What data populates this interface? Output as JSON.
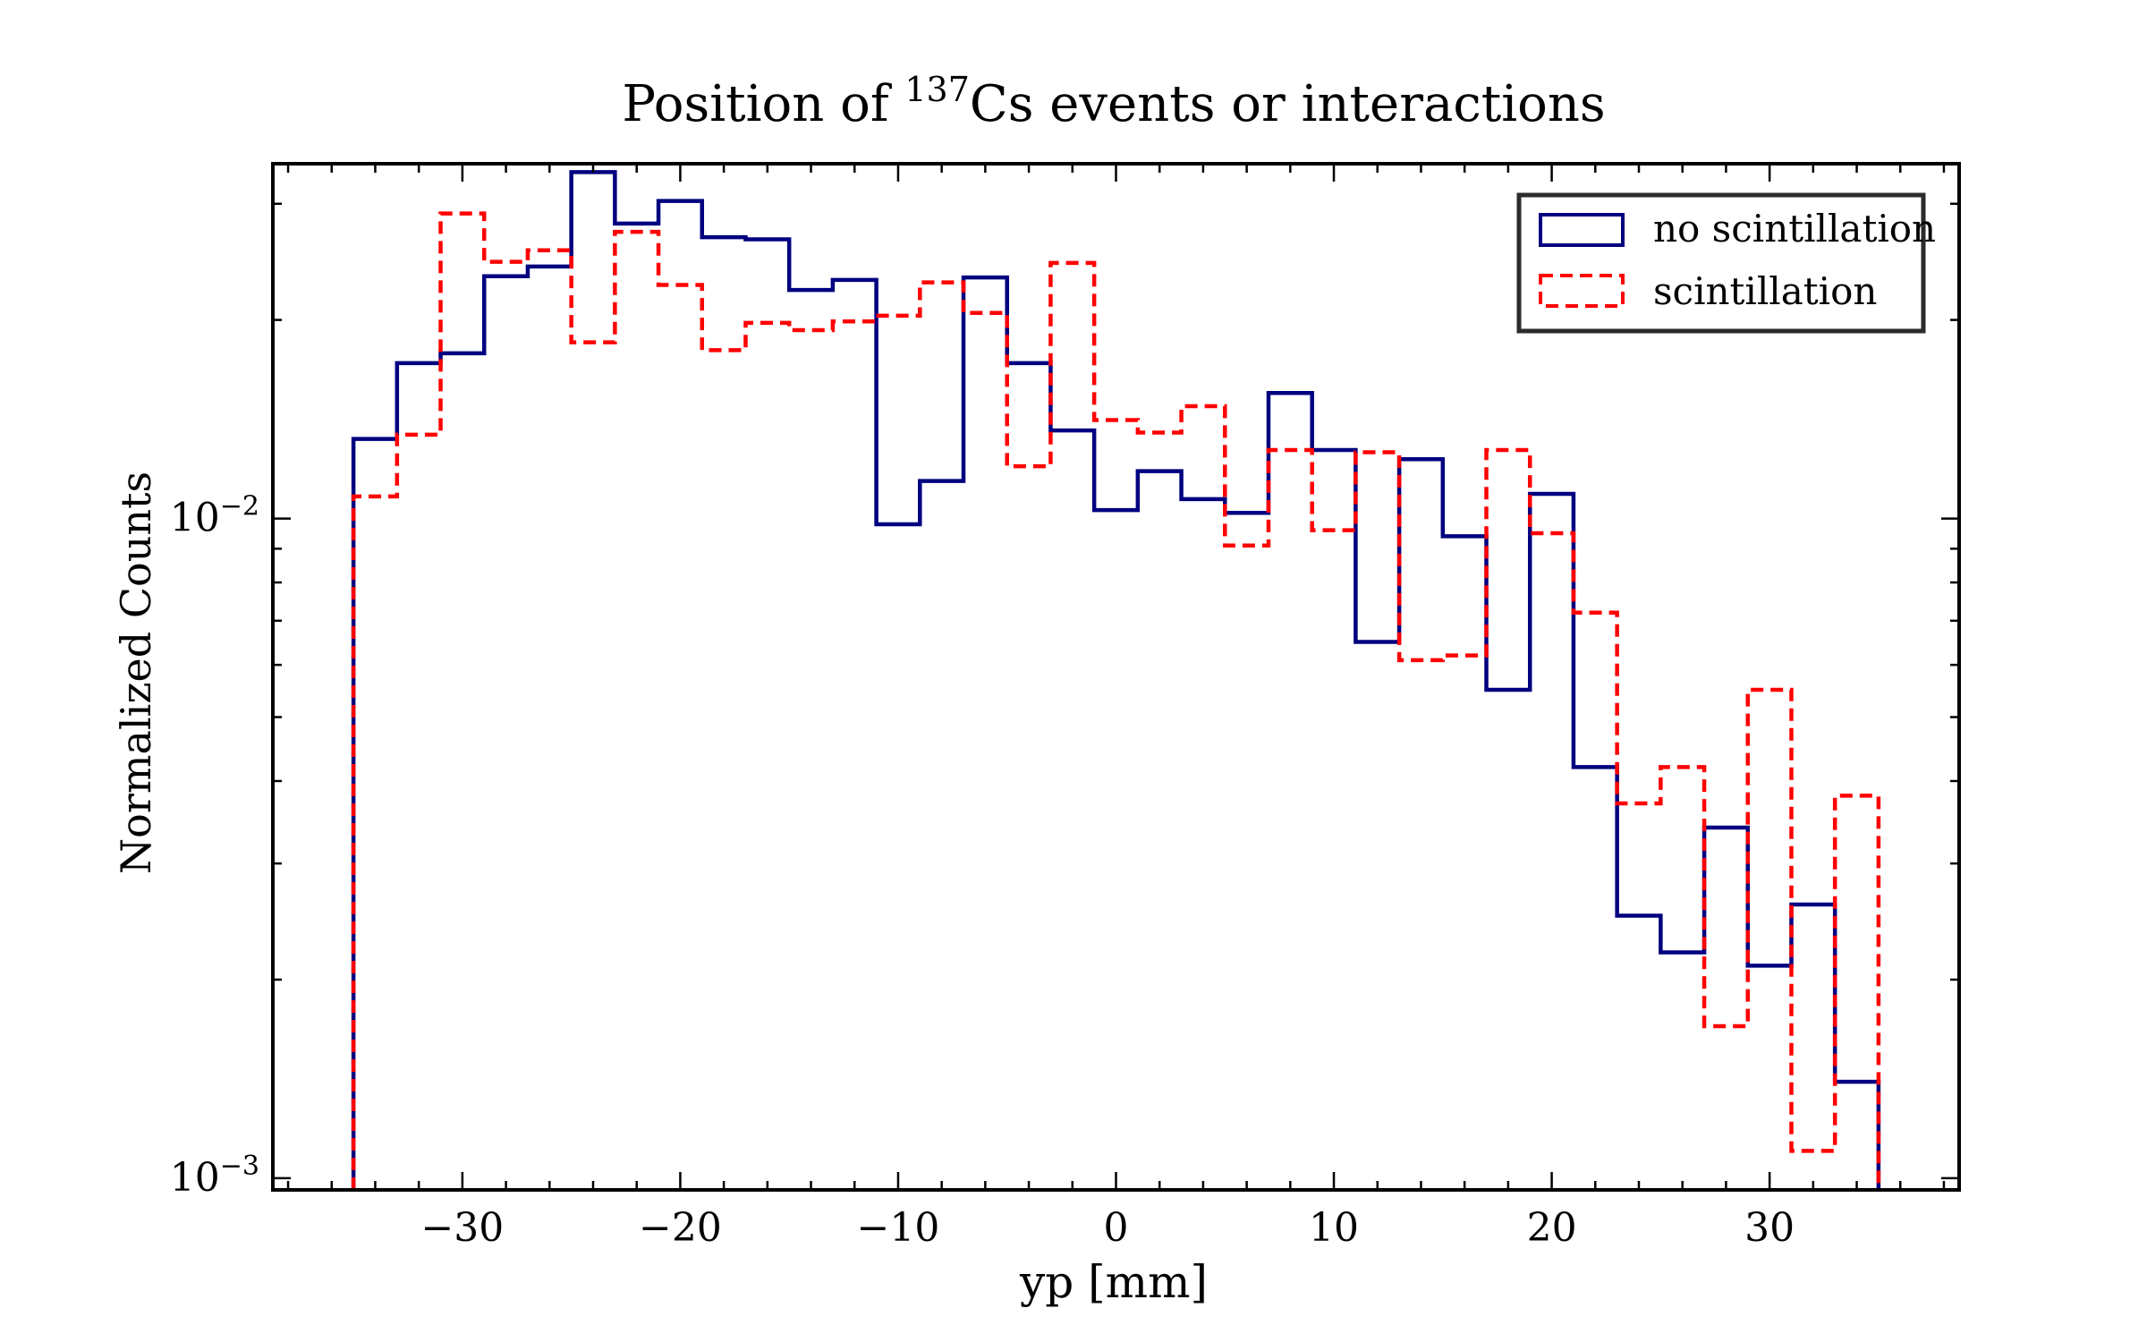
{
  "chart_data": {
    "type": "histogram",
    "title_main": "Position of ",
    "title_sup": "137",
    "title_rest": "Cs events or interactions",
    "xlabel": "yp [mm]",
    "ylabel": "Normalized Counts",
    "yscale": "log",
    "xlim": [
      -38.7,
      38.7
    ],
    "ylim": [
      0.00096,
      0.0345
    ],
    "xticks": [
      -30,
      -20,
      -10,
      0,
      10,
      20,
      30
    ],
    "xtick_labels": [
      "−30",
      "−20",
      "−10",
      "0",
      "10",
      "20",
      "30"
    ],
    "ytick_major": [
      {
        "value": 0.01,
        "base": "10",
        "exp": "−2"
      },
      {
        "value": 0.001,
        "base": "10",
        "exp": "−3"
      }
    ],
    "ytick_minor": [
      0.002,
      0.003,
      0.004,
      0.005,
      0.006,
      0.007,
      0.008,
      0.009,
      0.02,
      0.03
    ],
    "grid": false,
    "legend_position": "top-right",
    "bin_edges": [
      -35,
      -33,
      -31,
      -29,
      -27,
      -25,
      -23,
      -21,
      -19,
      -17,
      -15,
      -13,
      -11,
      -9,
      -7,
      -5,
      -3,
      -1,
      1,
      3,
      5,
      7,
      9,
      11,
      13,
      15,
      17,
      19,
      21,
      23,
      25,
      27,
      29,
      31,
      33,
      35
    ],
    "series": [
      {
        "name": "no scintillation",
        "color": "#000080",
        "style": "solid",
        "values": [
          0.0132,
          0.0172,
          0.0178,
          0.0233,
          0.0241,
          0.0335,
          0.028,
          0.0303,
          0.0267,
          0.0265,
          0.0222,
          0.023,
          0.0098,
          0.0114,
          0.0232,
          0.0172,
          0.0136,
          0.0103,
          0.0118,
          0.0107,
          0.0102,
          0.0155,
          0.0127,
          0.0065,
          0.0123,
          0.0094,
          0.0055,
          0.0109,
          0.0042,
          0.0025,
          0.0022,
          0.0034,
          0.0021,
          0.0026,
          0.0014
        ]
      },
      {
        "name": "scintillation",
        "color": "#ff0000",
        "style": "dashed",
        "values": [
          0.0108,
          0.0134,
          0.029,
          0.0245,
          0.0255,
          0.0185,
          0.0272,
          0.0226,
          0.018,
          0.0198,
          0.0193,
          0.0199,
          0.0203,
          0.0228,
          0.0205,
          0.012,
          0.0244,
          0.0141,
          0.0135,
          0.0148,
          0.0091,
          0.0127,
          0.0096,
          0.0126,
          0.0061,
          0.0062,
          0.0127,
          0.0095,
          0.0072,
          0.0037,
          0.0042,
          0.0017,
          0.0055,
          0.0011,
          0.0038
        ]
      }
    ]
  }
}
